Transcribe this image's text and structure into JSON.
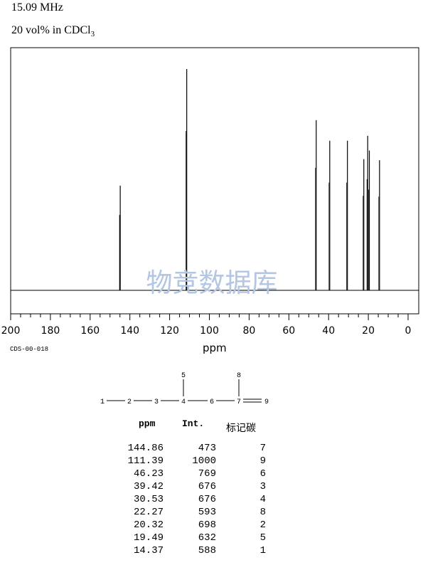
{
  "header": {
    "frequency": "15.09 MHz",
    "solvent_main": "20 vol% in CDCl",
    "solvent_sub": "3"
  },
  "spectrum_code": "CDS-00-018",
  "watermark": "物竞数据库",
  "colors": {
    "line": "#000000",
    "watermark": "#b3c6e2"
  },
  "chart_data": {
    "type": "line",
    "title": "",
    "xlabel": "ppm",
    "ylabel": "",
    "xlim": [
      200,
      0
    ],
    "x_ticks": [
      200,
      180,
      160,
      140,
      120,
      100,
      80,
      60,
      40,
      20,
      0
    ],
    "x_minor_step": 5,
    "relative_ylim": [
      0,
      1000
    ],
    "peaks": [
      {
        "ppm": 144.86,
        "intensity": 473,
        "label": "7"
      },
      {
        "ppm": 111.39,
        "intensity": 1000,
        "label": "9"
      },
      {
        "ppm": 46.23,
        "intensity": 769,
        "label": "6"
      },
      {
        "ppm": 39.42,
        "intensity": 676,
        "label": "3"
      },
      {
        "ppm": 30.53,
        "intensity": 676,
        "label": "4"
      },
      {
        "ppm": 22.27,
        "intensity": 593,
        "label": "8"
      },
      {
        "ppm": 20.32,
        "intensity": 698,
        "label": "2"
      },
      {
        "ppm": 19.49,
        "intensity": 632,
        "label": "5"
      },
      {
        "ppm": 14.37,
        "intensity": 588,
        "label": "1"
      }
    ]
  },
  "molecule": {
    "atoms": [
      "1",
      "2",
      "3",
      "4",
      "5",
      "6",
      "7",
      "8",
      "9"
    ]
  },
  "table": {
    "headers": {
      "ppm": "ppm",
      "int": "Int.",
      "label": "标记碳"
    },
    "rows": [
      {
        "ppm": "144.86",
        "int": "473",
        "label": "7"
      },
      {
        "ppm": "111.39",
        "int": "1000",
        "label": "9"
      },
      {
        "ppm": "46.23",
        "int": "769",
        "label": "6"
      },
      {
        "ppm": "39.42",
        "int": "676",
        "label": "3"
      },
      {
        "ppm": "30.53",
        "int": "676",
        "label": "4"
      },
      {
        "ppm": "22.27",
        "int": "593",
        "label": "8"
      },
      {
        "ppm": "20.32",
        "int": "698",
        "label": "2"
      },
      {
        "ppm": "19.49",
        "int": "632",
        "label": "5"
      },
      {
        "ppm": "14.37",
        "int": "588",
        "label": "1"
      }
    ]
  }
}
